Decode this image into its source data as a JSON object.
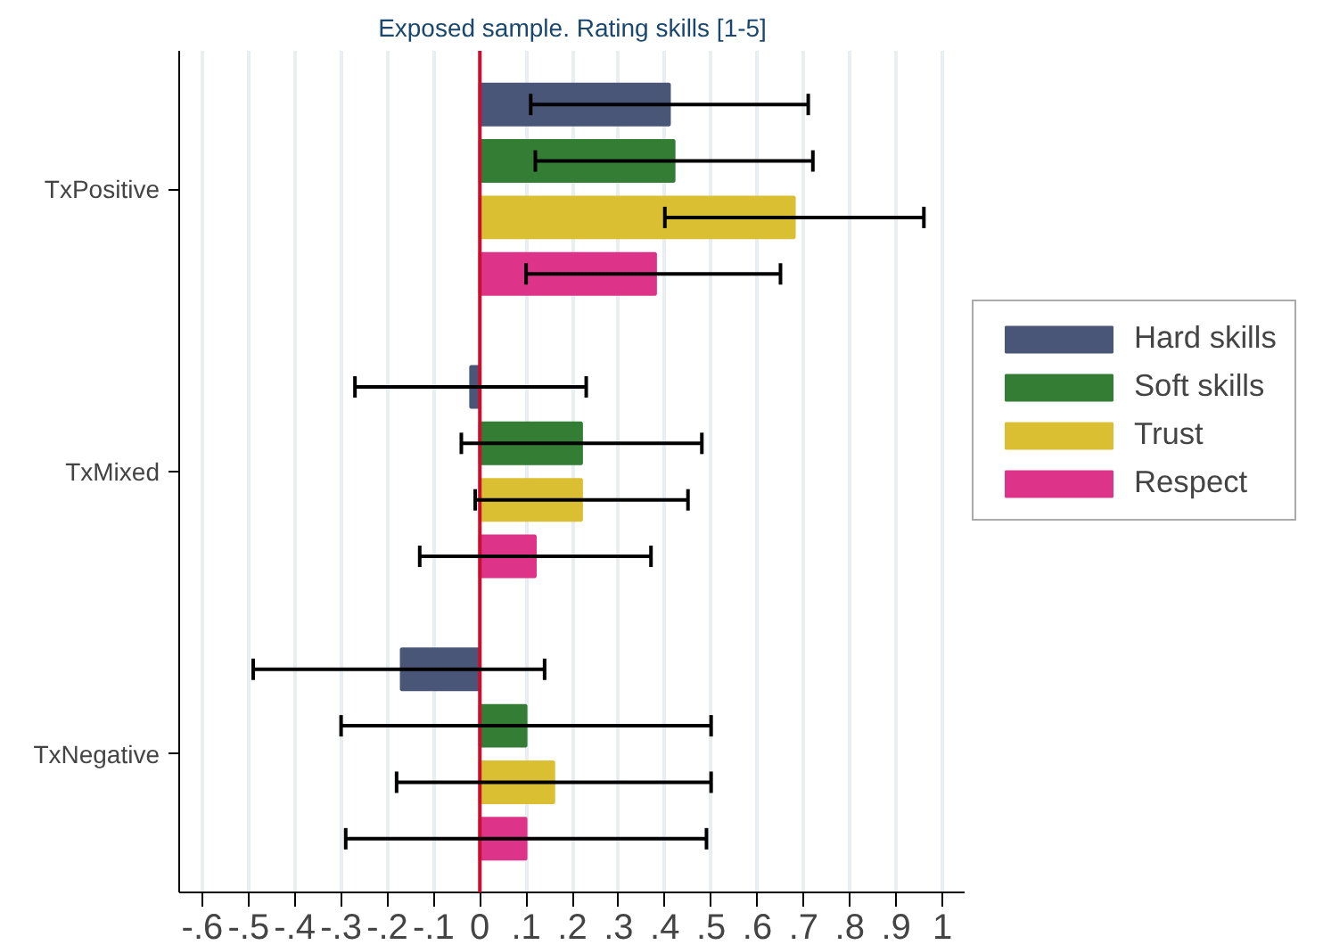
{
  "chart_data": {
    "type": "bar",
    "orientation": "horizontal",
    "title": "Exposed sample. Rating skills [1-5]",
    "categories": [
      "TxPositive",
      "TxMixed",
      "TxNegative"
    ],
    "series": [
      {
        "name": "Hard skills",
        "color": "#4a5677",
        "values": [
          0.41,
          -0.02,
          -0.17
        ],
        "errors": [
          [
            0.11,
            0.71
          ],
          [
            -0.27,
            0.23
          ],
          [
            -0.49,
            0.14
          ]
        ]
      },
      {
        "name": "Soft skills",
        "color": "#337d35",
        "values": [
          0.42,
          0.22,
          0.1
        ],
        "errors": [
          [
            0.12,
            0.72
          ],
          [
            -0.04,
            0.48
          ],
          [
            -0.3,
            0.5
          ]
        ]
      },
      {
        "name": "Trust",
        "color": "#dbbf33",
        "values": [
          0.68,
          0.22,
          0.16
        ],
        "errors": [
          [
            0.4,
            0.96
          ],
          [
            -0.01,
            0.45
          ],
          [
            -0.18,
            0.5
          ]
        ]
      },
      {
        "name": "Respect",
        "color": "#dd3388",
        "values": [
          0.38,
          0.12,
          0.1
        ],
        "errors": [
          [
            0.1,
            0.65
          ],
          [
            -0.13,
            0.37
          ],
          [
            -0.29,
            0.49
          ]
        ]
      }
    ],
    "xlim": [
      -0.65,
      1.05
    ],
    "xticks": [
      {
        "value": -0.6,
        "label": "-.6"
      },
      {
        "value": -0.5,
        "label": "-.5"
      },
      {
        "value": -0.4,
        "label": "-.4"
      },
      {
        "value": -0.3,
        "label": "-.3"
      },
      {
        "value": -0.2,
        "label": "-.2"
      },
      {
        "value": -0.1,
        "label": "-.1"
      },
      0,
      {
        "value": 0.1,
        "label": ".1"
      },
      {
        "value": 0.2,
        "label": ".2"
      },
      {
        "value": 0.3,
        "label": ".3"
      },
      {
        "value": 0.4,
        "label": ".4"
      },
      {
        "value": 0.5,
        "label": ".5"
      },
      {
        "value": 0.6,
        "label": ".6"
      },
      {
        "value": 0.7,
        "label": ".7"
      },
      {
        "value": 0.8,
        "label": ".8"
      },
      {
        "value": 0.9,
        "label": ".9"
      },
      1
    ],
    "ref_lines": [
      {
        "axis": "x",
        "value": 0,
        "color": "#c8102e"
      }
    ],
    "grid": "x",
    "legend": "right"
  }
}
